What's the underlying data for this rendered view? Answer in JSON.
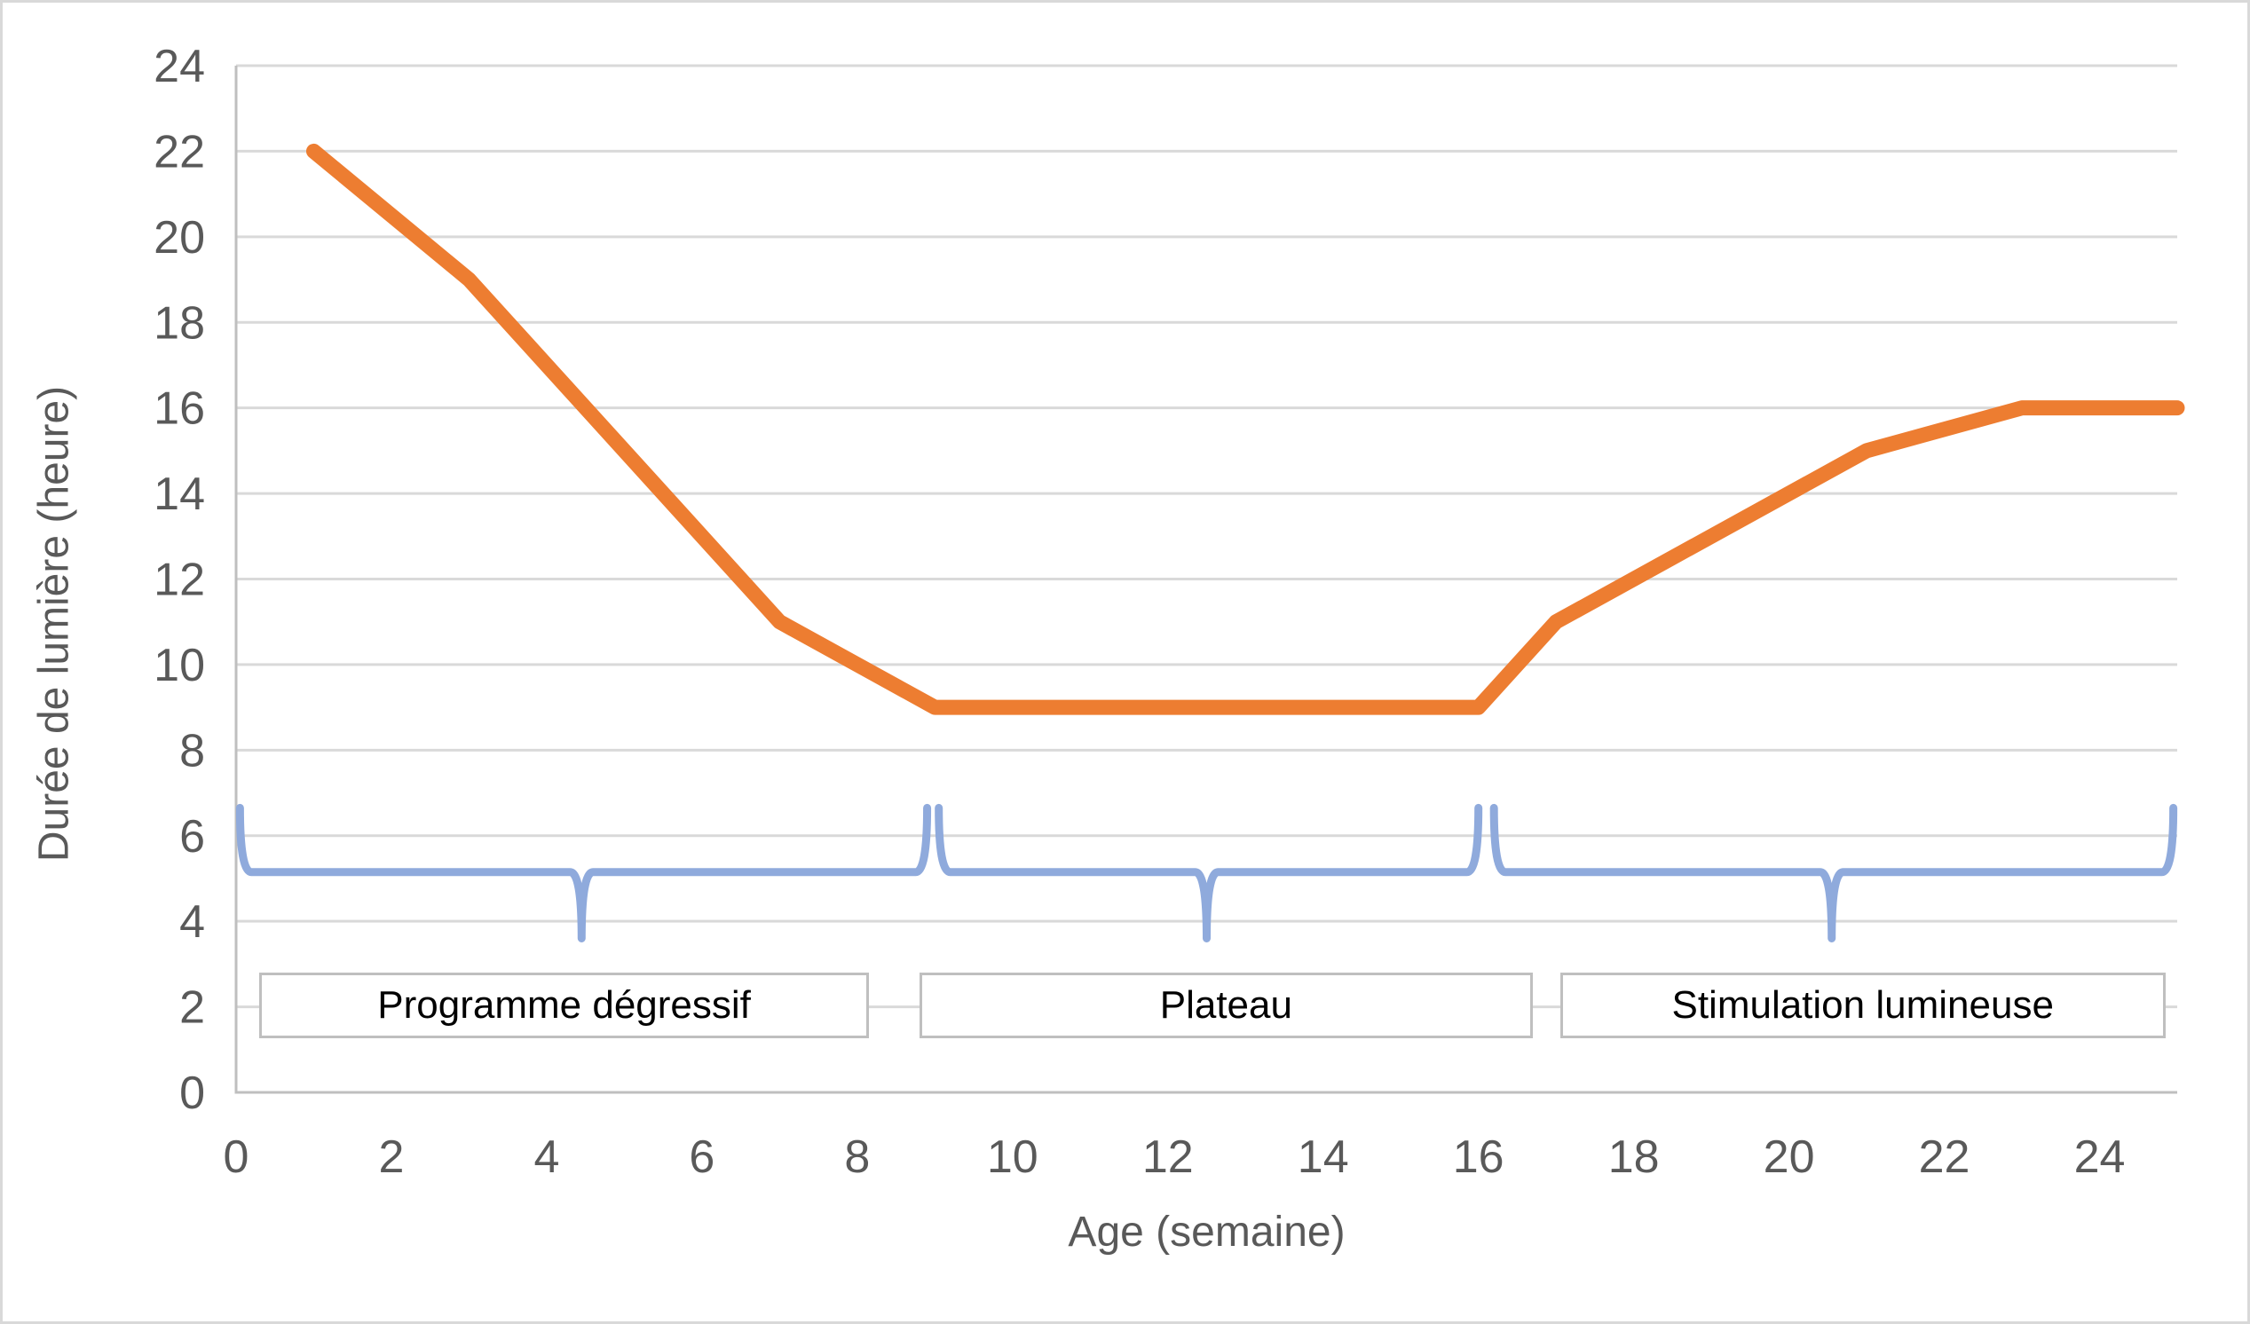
{
  "colors": {
    "line_orange": "#ED7D31",
    "brace_blue": "#8FAADC",
    "gridline": "#D9D9D9",
    "axis_line": "#BFBFBF",
    "tick_text": "#595959",
    "box_border": "#BFBFBF",
    "frame": "#D9D9D9"
  },
  "chart_data": {
    "type": "line",
    "title": "",
    "xlabel": "Age (semaine)",
    "ylabel": "Durée de lumière (heure)",
    "xlim": [
      0,
      25
    ],
    "ylim": [
      0,
      24
    ],
    "x_ticks": [
      0,
      2,
      4,
      6,
      8,
      10,
      12,
      14,
      16,
      18,
      20,
      22,
      24
    ],
    "y_ticks": [
      0,
      2,
      4,
      6,
      8,
      10,
      12,
      14,
      16,
      18,
      20,
      22,
      24
    ],
    "grid": "horizontal-only",
    "legend": "none",
    "series": [
      {
        "name": "Durée de lumière",
        "color": "#ED7D31",
        "points": [
          [
            1,
            22
          ],
          [
            3,
            19
          ],
          [
            7,
            11
          ],
          [
            9,
            9
          ],
          [
            16,
            9
          ],
          [
            17,
            11
          ],
          [
            21,
            15
          ],
          [
            23,
            16
          ],
          [
            25,
            16
          ]
        ]
      }
    ],
    "annotations": {
      "braces": {
        "color": "#8FAADC",
        "level_value": 5.15,
        "hook_top_value": 6.65,
        "pointer_tip_value": 3.6,
        "spans": [
          {
            "from_week": 0.05,
            "to_week": 8.9,
            "mid_week": 4.45
          },
          {
            "from_week": 9.05,
            "to_week": 16.0,
            "mid_week": 12.5
          },
          {
            "from_week": 16.2,
            "to_week": 24.95,
            "mid_week": 20.55
          }
        ]
      },
      "phases": [
        {
          "label": "Programme dégressif",
          "box_from_week": 0.3,
          "box_to_week": 8.15
        },
        {
          "label": "Plateau",
          "box_from_week": 8.8,
          "box_to_week": 16.7
        },
        {
          "label": "Stimulation lumineuse",
          "box_from_week": 17.05,
          "box_to_week": 24.85
        }
      ],
      "phase_box_y_values": [
        1.26,
        2.8
      ]
    }
  }
}
